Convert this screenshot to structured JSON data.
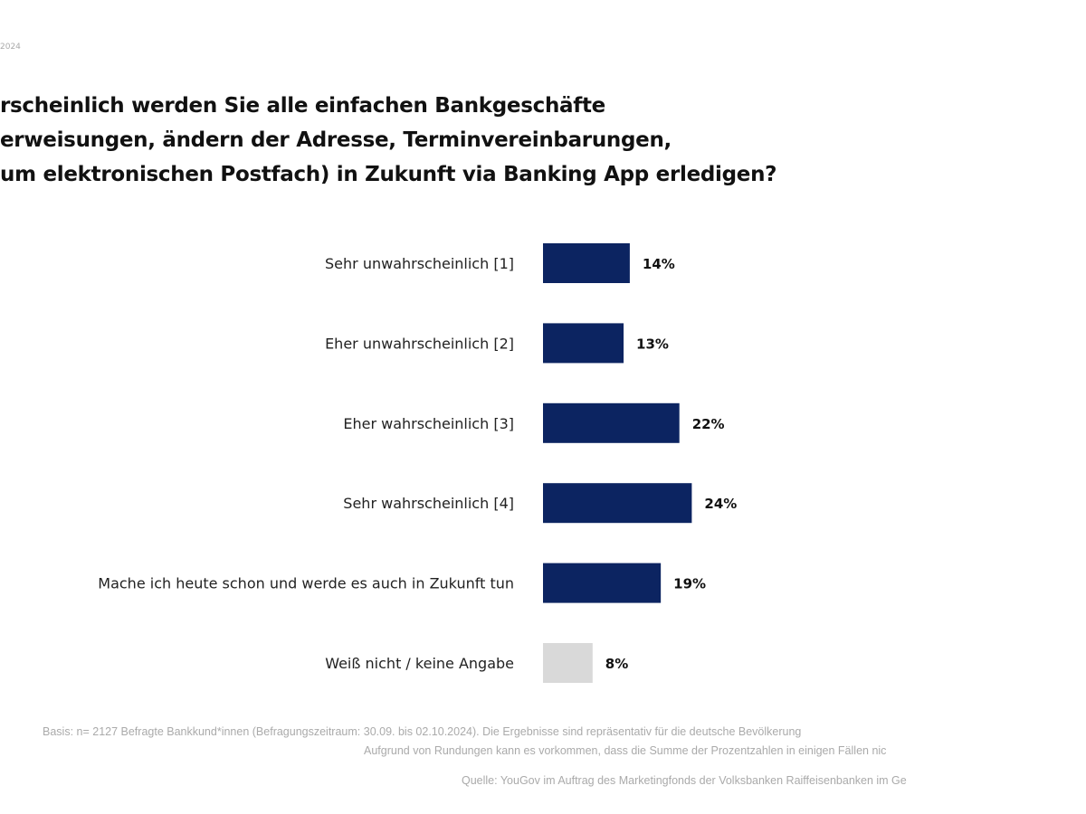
{
  "header": {
    "date_fragment": "2024"
  },
  "title_lines": [
    "rscheinlich werden Sie alle einfachen Bankgeschäfte",
    "erweisungen, ändern der Adresse, Terminvereinbarungen,",
    "um elektronischen Postfach) in Zukunft via Banking App erledigen?"
  ],
  "chart_data": {
    "type": "bar",
    "orientation": "horizontal",
    "categories": [
      "Sehr unwahrscheinlich [1]",
      "Eher unwahrscheinlich [2]",
      "Eher wahrscheinlich [3]",
      "Sehr wahrscheinlich [4]",
      "Mache ich heute schon und werde es auch in Zukunft tun",
      "Weiß nicht / keine Angabe"
    ],
    "values": [
      14,
      13,
      22,
      24,
      19,
      8
    ],
    "value_labels": [
      "14%",
      "13%",
      "22%",
      "24%",
      "19%",
      "8%"
    ],
    "colors": [
      "#0c2461",
      "#0c2461",
      "#0c2461",
      "#0c2461",
      "#0c2461",
      "#d9d9d9"
    ],
    "unit": "%",
    "grid": false
  },
  "footer": {
    "basis": "Basis: n= 2127 Befragte Bankkund*innen (Befragungszeitraum: 30.09. bis 02.10.2024). Die Ergebnisse sind repräsentativ für die deutsche Bevölkerung",
    "rounding": "Aufgrund von Rundungen kann es vorkommen, dass die Summe der Prozentzahlen in einigen Fällen nic",
    "source": "Quelle: YouGov im Auftrag des Marketingfonds der Volksbanken Raiffeisenbanken im Ge"
  }
}
